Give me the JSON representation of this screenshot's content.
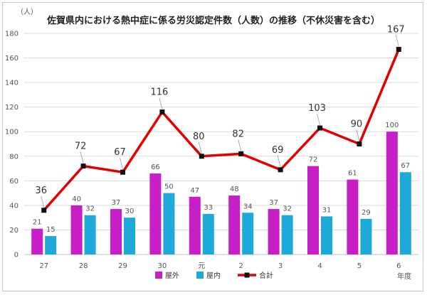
{
  "chart_data": {
    "type": "bar",
    "title": "佐賀県内における熱中症に係る労災認定件数（人数）の推移（不休災害を含む）",
    "ylabel": "（人）",
    "xlabel": "年度",
    "ylim": [
      0,
      180
    ],
    "yticks": [
      0,
      20,
      40,
      60,
      80,
      100,
      120,
      140,
      160,
      180
    ],
    "categories": [
      "27",
      "28",
      "29",
      "30",
      "元",
      "2",
      "3",
      "4",
      "5",
      "6"
    ],
    "series": [
      {
        "name": "屋外",
        "type": "bar",
        "color": "#c81ec8",
        "values": [
          21,
          40,
          37,
          66,
          47,
          48,
          37,
          72,
          61,
          100
        ]
      },
      {
        "name": "屋内",
        "type": "bar",
        "color": "#1eaad8",
        "values": [
          15,
          32,
          30,
          50,
          33,
          34,
          32,
          31,
          29,
          67
        ]
      },
      {
        "name": "合計",
        "type": "line",
        "color": "#e00000",
        "values": [
          36,
          72,
          67,
          116,
          80,
          82,
          69,
          103,
          90,
          167
        ]
      }
    ],
    "grid": true,
    "legend": "bottom"
  }
}
